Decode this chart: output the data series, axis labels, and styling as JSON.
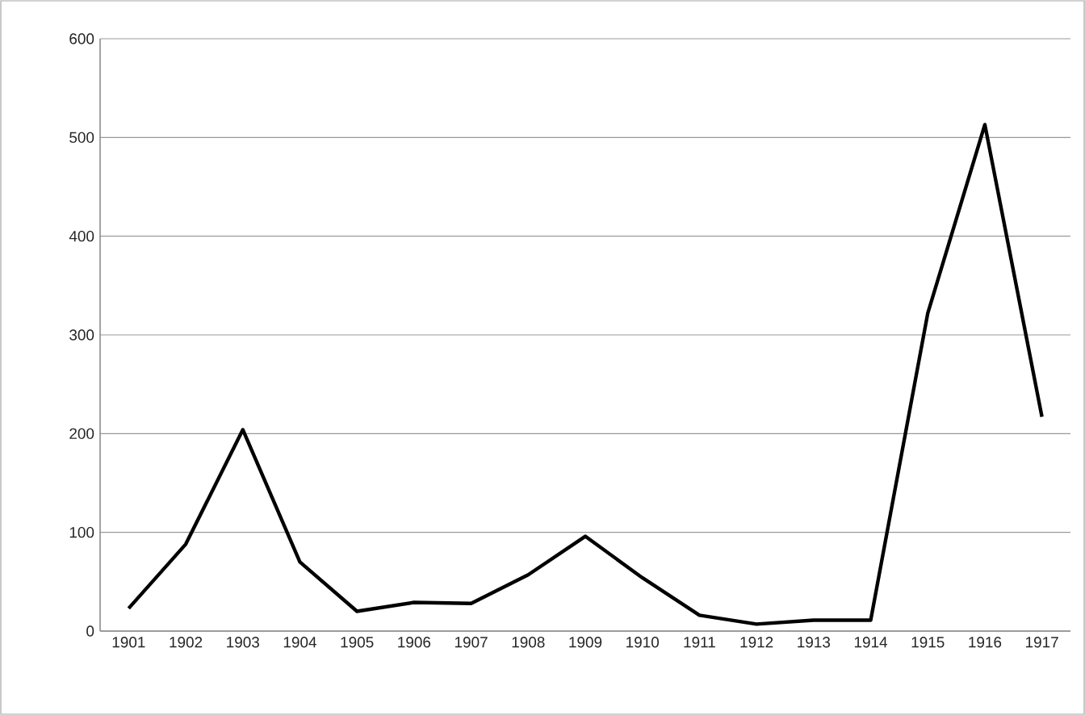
{
  "chart_data": {
    "type": "line",
    "categories": [
      "1901",
      "1902",
      "1903",
      "1904",
      "1905",
      "1906",
      "1907",
      "1908",
      "1909",
      "1910",
      "1911",
      "1912",
      "1913",
      "1914",
      "1915",
      "1916",
      "1917"
    ],
    "series": [
      {
        "color": "#000000",
        "values": [
          23,
          88,
          204,
          70,
          20,
          29,
          28,
          57,
          96,
          54,
          16,
          7,
          11,
          11,
          322,
          513,
          217
        ]
      }
    ],
    "ylim": [
      0,
      600
    ],
    "yticks": [
      0,
      100,
      200,
      300,
      400,
      500,
      600
    ],
    "grid": "y",
    "marker": "none",
    "line_style": "solid"
  }
}
